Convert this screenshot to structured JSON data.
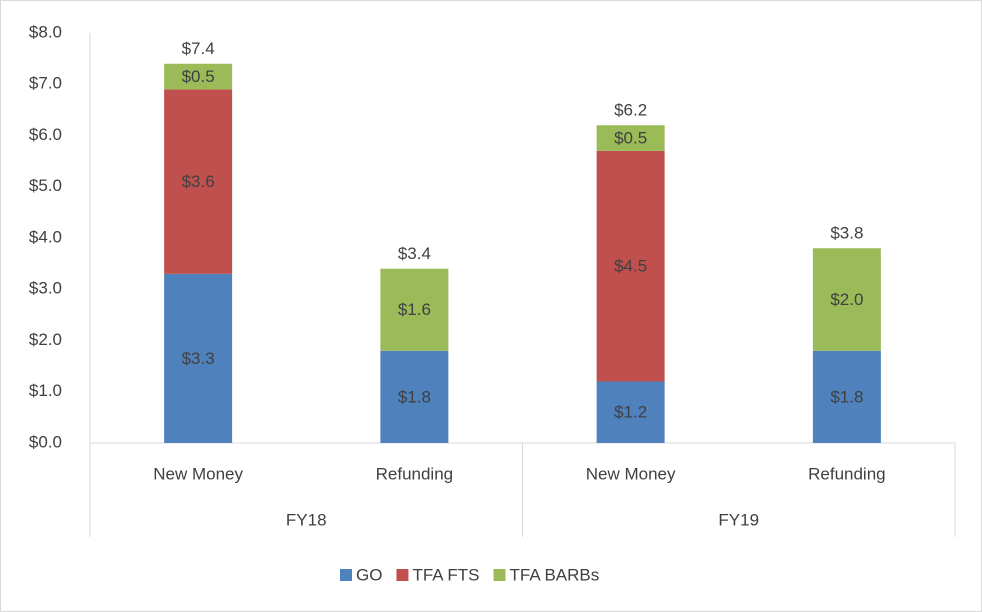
{
  "chart_data": {
    "type": "stacked_bar",
    "categories": [
      "New Money",
      "Refunding",
      "New Money",
      "Refunding"
    ],
    "groups": [
      "FY18",
      "FY19"
    ],
    "series": [
      {
        "name": "GO",
        "color": "#4f81bd",
        "values": [
          3.3,
          1.8,
          1.2,
          1.8
        ],
        "value_labels": [
          "$3.3",
          "$1.8",
          "$1.2",
          "$1.8"
        ]
      },
      {
        "name": "TFA FTS",
        "color": "#c0504d",
        "values": [
          3.6,
          null,
          4.5,
          null
        ],
        "value_labels": [
          "$3.6",
          null,
          "$4.5",
          null
        ]
      },
      {
        "name": "TFA BARBs",
        "color": "#9bbb59",
        "values": [
          0.5,
          1.6,
          0.5,
          2.0
        ],
        "value_labels": [
          "$0.5",
          "$1.6",
          "$0.5",
          "$2.0"
        ]
      }
    ],
    "totals": [
      7.4,
      3.4,
      6.2,
      3.8
    ],
    "total_labels": [
      "$7.4",
      "$3.4",
      "$6.2",
      "$3.8"
    ],
    "ylim": [
      0,
      8
    ],
    "yticks": [
      {
        "value": 0,
        "label": "$0.0"
      },
      {
        "value": 1,
        "label": "$1.0"
      },
      {
        "value": 2,
        "label": "$2.0"
      },
      {
        "value": 3,
        "label": "$3.0"
      },
      {
        "value": 4,
        "label": "$4.0"
      },
      {
        "value": 5,
        "label": "$5.0"
      },
      {
        "value": 6,
        "label": "$6.0"
      },
      {
        "value": 7,
        "label": "$7.0"
      },
      {
        "value": 8,
        "label": "$8.0"
      }
    ],
    "legend": "bottom"
  }
}
